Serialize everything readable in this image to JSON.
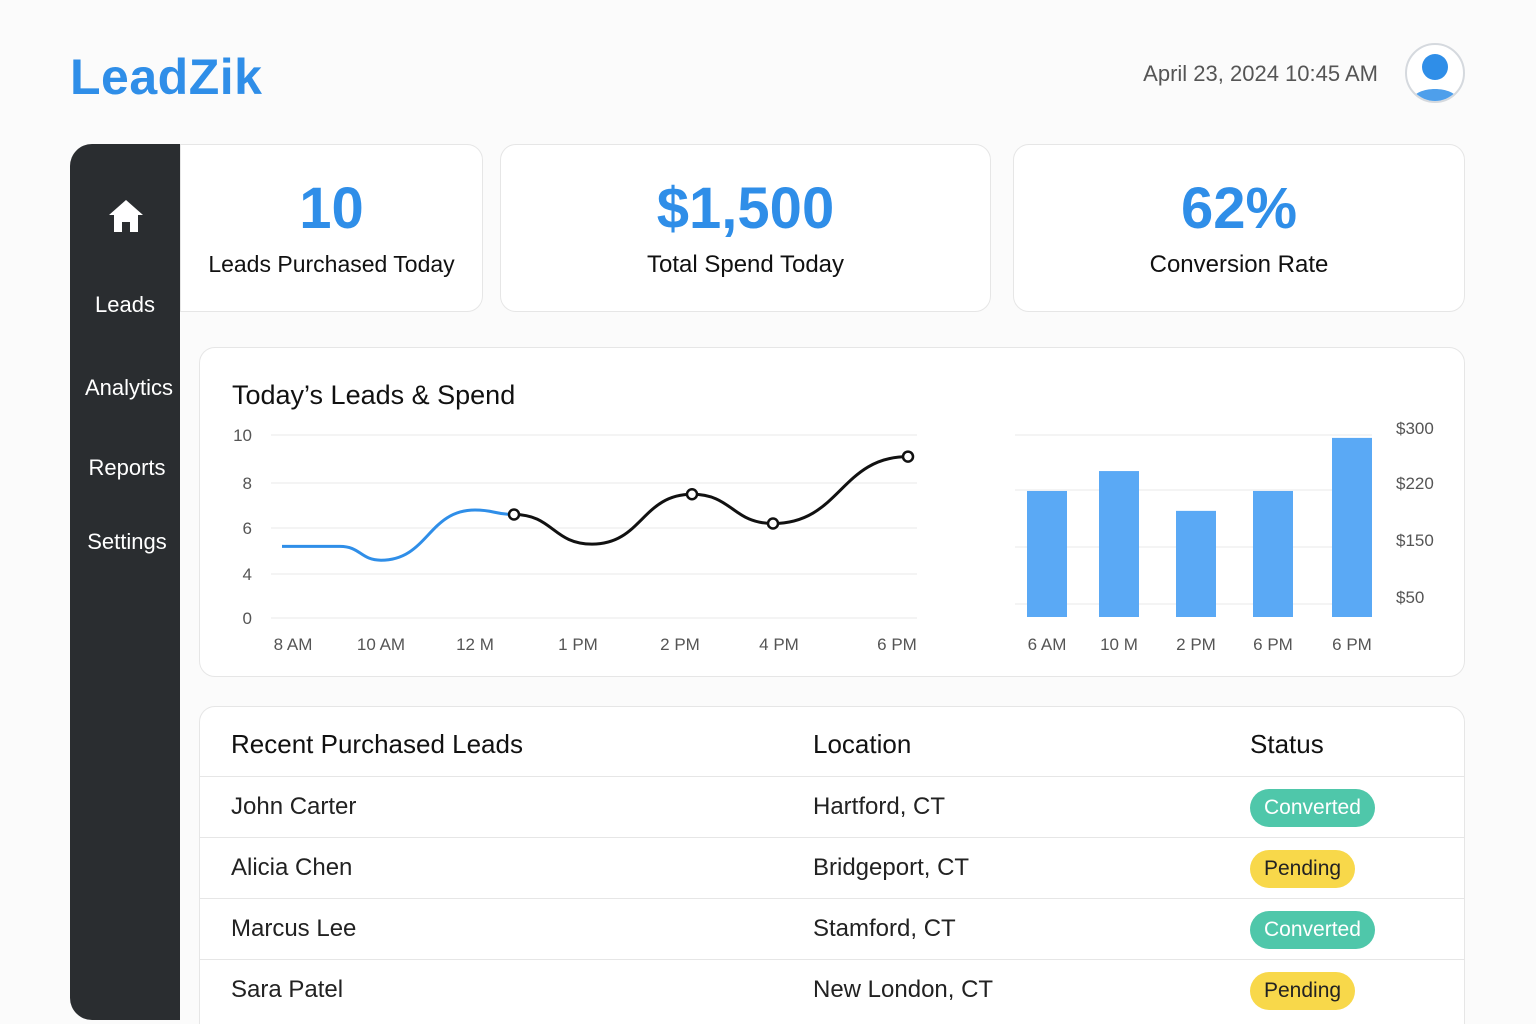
{
  "app": {
    "logo": "LeadZik",
    "datetime": "April 23, 2024 10:45 AM"
  },
  "sidebar": {
    "items": [
      {
        "label": "Leads"
      },
      {
        "label": "Analytics"
      },
      {
        "label": "Reports"
      },
      {
        "label": "Settings"
      }
    ],
    "home_icon": "home-icon"
  },
  "stats": [
    {
      "value": "10",
      "label": "Leads Purchased Today"
    },
    {
      "value": "$1,500",
      "label": "Total Spend Today"
    },
    {
      "value": "62%",
      "label": "Conversion Rate"
    }
  ],
  "chart": {
    "title": "Today’s Leads & Spend"
  },
  "chart_data": [
    {
      "type": "line",
      "title": "Today’s Leads & Spend",
      "x": [
        "8 AM",
        "10 AM",
        "12 M",
        "1 PM",
        "2 PM",
        "4 PM",
        "6 PM"
      ],
      "y_ticks": [
        "10",
        "8",
        "6",
        "4",
        "0"
      ],
      "ylim": [
        0,
        10
      ],
      "grid": true,
      "series": [
        {
          "points": [
            {
              "x": "8 AM",
              "y": 5.2
            },
            {
              "x": "8 AM+",
              "y": 5.2
            },
            {
              "x": "10 AM",
              "y": 4.6
            },
            {
              "x": "12 M",
              "y": 6.8
            },
            {
              "x": "12 M+",
              "y": 6.6
            },
            {
              "x": "1 PM",
              "y": 5.3
            },
            {
              "x": "2 PM",
              "y": 7.5
            },
            {
              "x": "4 PM",
              "y": 6.2
            },
            {
              "x": "6 PM",
              "y": 9.1
            }
          ],
          "markers": [
            {
              "x": "12 M+",
              "y": 6.6
            },
            {
              "x": "2 PM",
              "y": 7.5
            },
            {
              "x": "4 PM",
              "y": 6.2
            },
            {
              "x": "6 PM",
              "y": 9.1
            }
          ],
          "colors": {
            "early": "#2f8ee8",
            "late": "#111111"
          }
        }
      ]
    },
    {
      "type": "bar",
      "categories": [
        "6 AM",
        "10 M",
        "2 PM",
        "6 PM",
        "6 PM"
      ],
      "values": [
        190,
        220,
        160,
        190,
        270
      ],
      "y_ticks": [
        "$300",
        "$220",
        "$150",
        "$50"
      ],
      "ylim": [
        0,
        300
      ],
      "color": "#5aa9f5",
      "grid": true
    }
  ],
  "table": {
    "headers": {
      "name": "Recent Purchased Leads",
      "location": "Location",
      "status": "Status"
    },
    "rows": [
      {
        "name": "John Carter",
        "location": "Hartford, CT",
        "status": "Converted"
      },
      {
        "name": "Alicia Chen",
        "location": "Bridgeport, CT",
        "status": "Pending"
      },
      {
        "name": "Marcus Lee",
        "location": "Stamford, CT",
        "status": "Converted"
      },
      {
        "name": "Sara Patel",
        "location": "New London, CT",
        "status": "Pending"
      }
    ]
  },
  "colors": {
    "brand": "#2f8ee8",
    "converted_bg": "#4fc7aa",
    "pending_bg": "#f8d84a",
    "sidebar_bg": "#2a2d30"
  }
}
